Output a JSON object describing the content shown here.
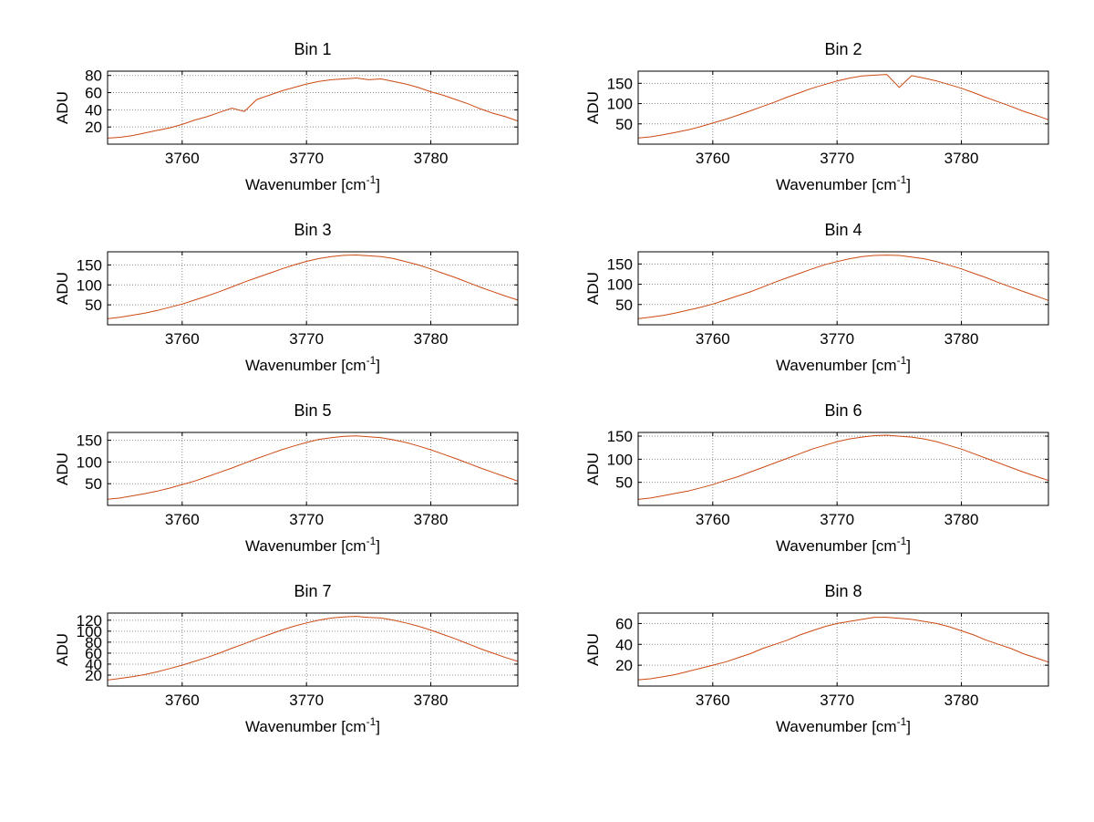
{
  "figure": {
    "background": "#ffffff",
    "rows": 4,
    "cols": 2
  },
  "colors": {
    "line": "#cc4a14",
    "grid": "#8c8c8c",
    "axis": "#000000",
    "text": "#000000"
  },
  "chart_data": [
    {
      "type": "line",
      "title": "Bin 1",
      "xlabel": "Wavenumber [cm^-1]",
      "xlabel_parts": [
        "Wavenumber [cm",
        "-1",
        "]"
      ],
      "ylabel": "ADU",
      "xlim": [
        3754,
        3787
      ],
      "ylim": [
        0,
        85
      ],
      "xticks": [
        3760,
        3770,
        3780
      ],
      "yticks": [
        20,
        40,
        60,
        80
      ],
      "grid": "dotted",
      "x": [
        3754,
        3755,
        3756,
        3757,
        3758,
        3759,
        3760,
        3761,
        3762,
        3763,
        3764,
        3765,
        3766,
        3767,
        3768,
        3769,
        3770,
        3771,
        3772,
        3773,
        3774,
        3775,
        3776,
        3777,
        3778,
        3779,
        3780,
        3781,
        3782,
        3783,
        3784,
        3785,
        3786,
        3787
      ],
      "y": [
        7,
        8,
        10,
        13,
        16,
        19,
        23,
        28,
        32,
        37,
        42,
        38,
        52,
        57,
        62,
        66,
        70,
        73,
        75,
        76,
        77,
        75,
        76,
        73,
        70,
        66,
        61,
        57,
        52,
        47,
        41,
        36,
        32,
        27
      ]
    },
    {
      "type": "line",
      "title": "Bin 2",
      "xlabel": "Wavenumber [cm^-1]",
      "xlabel_parts": [
        "Wavenumber [cm",
        "-1",
        "]"
      ],
      "ylabel": "ADU",
      "xlim": [
        3754,
        3787
      ],
      "ylim": [
        0,
        180
      ],
      "xticks": [
        3760,
        3770,
        3780
      ],
      "yticks": [
        50,
        100,
        150
      ],
      "grid": "dotted",
      "x": [
        3754,
        3755,
        3756,
        3757,
        3758,
        3759,
        3760,
        3761,
        3762,
        3763,
        3764,
        3765,
        3766,
        3767,
        3768,
        3769,
        3770,
        3771,
        3772,
        3773,
        3774,
        3775,
        3776,
        3777,
        3778,
        3779,
        3780,
        3781,
        3782,
        3783,
        3784,
        3785,
        3786,
        3787
      ],
      "y": [
        15,
        18,
        23,
        29,
        35,
        43,
        52,
        61,
        71,
        82,
        93,
        104,
        116,
        127,
        138,
        147,
        156,
        163,
        168,
        170,
        172,
        140,
        169,
        163,
        156,
        147,
        138,
        127,
        115,
        104,
        93,
        81,
        71,
        60
      ]
    },
    {
      "type": "line",
      "title": "Bin 3",
      "xlabel": "Wavenumber [cm^-1]",
      "xlabel_parts": [
        "Wavenumber [cm",
        "-1",
        "]"
      ],
      "ylabel": "ADU",
      "xlim": [
        3754,
        3787
      ],
      "ylim": [
        0,
        183
      ],
      "xticks": [
        3760,
        3770,
        3780
      ],
      "yticks": [
        50,
        100,
        150
      ],
      "grid": "dotted",
      "x": [
        3754,
        3755,
        3756,
        3757,
        3758,
        3759,
        3760,
        3761,
        3762,
        3763,
        3764,
        3765,
        3766,
        3767,
        3768,
        3769,
        3770,
        3771,
        3772,
        3773,
        3774,
        3775,
        3776,
        3777,
        3778,
        3779,
        3780,
        3781,
        3782,
        3783,
        3784,
        3785,
        3786,
        3787
      ],
      "y": [
        15,
        19,
        24,
        29,
        36,
        44,
        52,
        62,
        72,
        83,
        95,
        107,
        118,
        129,
        140,
        150,
        159,
        166,
        171,
        174,
        175,
        173,
        171,
        166,
        158,
        150,
        140,
        129,
        118,
        106,
        94,
        83,
        72,
        62
      ]
    },
    {
      "type": "line",
      "title": "Bin 4",
      "xlabel": "Wavenumber [cm^-1]",
      "xlabel_parts": [
        "Wavenumber [cm",
        "-1",
        "]"
      ],
      "ylabel": "ADU",
      "xlim": [
        3754,
        3787
      ],
      "ylim": [
        0,
        180
      ],
      "xticks": [
        3760,
        3770,
        3780
      ],
      "yticks": [
        50,
        100,
        150
      ],
      "grid": "dotted",
      "x": [
        3754,
        3755,
        3756,
        3757,
        3758,
        3759,
        3760,
        3761,
        3762,
        3763,
        3764,
        3765,
        3766,
        3767,
        3768,
        3769,
        3770,
        3771,
        3772,
        3773,
        3774,
        3775,
        3776,
        3777,
        3778,
        3779,
        3780,
        3781,
        3782,
        3783,
        3784,
        3785,
        3786,
        3787
      ],
      "y": [
        15,
        19,
        23,
        29,
        36,
        43,
        51,
        61,
        71,
        81,
        93,
        105,
        116,
        127,
        138,
        148,
        156,
        163,
        168,
        171,
        172,
        171,
        167,
        163,
        156,
        147,
        138,
        127,
        116,
        104,
        93,
        82,
        71,
        60
      ]
    },
    {
      "type": "line",
      "title": "Bin 5",
      "xlabel": "Wavenumber [cm^-1]",
      "xlabel_parts": [
        "Wavenumber [cm",
        "-1",
        "]"
      ],
      "ylabel": "ADU",
      "xlim": [
        3754,
        3787
      ],
      "ylim": [
        0,
        168
      ],
      "xticks": [
        3760,
        3770,
        3780
      ],
      "yticks": [
        50,
        100,
        150
      ],
      "grid": "dotted",
      "x": [
        3754,
        3755,
        3756,
        3757,
        3758,
        3759,
        3760,
        3761,
        3762,
        3763,
        3764,
        3765,
        3766,
        3767,
        3768,
        3769,
        3770,
        3771,
        3772,
        3773,
        3774,
        3775,
        3776,
        3777,
        3778,
        3779,
        3780,
        3781,
        3782,
        3783,
        3784,
        3785,
        3786,
        3787
      ],
      "y": [
        14,
        17,
        22,
        27,
        33,
        40,
        48,
        56,
        66,
        76,
        86,
        97,
        108,
        118,
        128,
        137,
        145,
        152,
        156,
        159,
        160,
        158,
        156,
        151,
        145,
        137,
        128,
        118,
        108,
        97,
        86,
        76,
        66,
        56
      ]
    },
    {
      "type": "line",
      "title": "Bin 6",
      "xlabel": "Wavenumber [cm^-1]",
      "xlabel_parts": [
        "Wavenumber [cm",
        "-1",
        "]"
      ],
      "ylabel": "ADU",
      "xlim": [
        3754,
        3787
      ],
      "ylim": [
        0,
        158
      ],
      "xticks": [
        3760,
        3770,
        3780
      ],
      "yticks": [
        50,
        100,
        150
      ],
      "grid": "dotted",
      "x": [
        3754,
        3755,
        3756,
        3757,
        3758,
        3759,
        3760,
        3761,
        3762,
        3763,
        3764,
        3765,
        3766,
        3767,
        3768,
        3769,
        3770,
        3771,
        3772,
        3773,
        3774,
        3775,
        3776,
        3777,
        3778,
        3779,
        3780,
        3781,
        3782,
        3783,
        3784,
        3785,
        3786,
        3787
      ],
      "y": [
        13,
        16,
        21,
        26,
        31,
        38,
        45,
        54,
        62,
        72,
        82,
        92,
        102,
        112,
        122,
        130,
        138,
        144,
        148,
        151,
        152,
        150,
        148,
        144,
        138,
        130,
        122,
        112,
        102,
        92,
        82,
        72,
        63,
        54
      ]
    },
    {
      "type": "line",
      "title": "Bin 7",
      "xlabel": "Wavenumber [cm^-1]",
      "xlabel_parts": [
        "Wavenumber [cm",
        "-1",
        "]"
      ],
      "ylabel": "ADU",
      "xlim": [
        3754,
        3787
      ],
      "ylim": [
        0,
        133
      ],
      "xticks": [
        3760,
        3770,
        3780
      ],
      "yticks": [
        20,
        40,
        60,
        80,
        100,
        120
      ],
      "grid": "dotted",
      "x": [
        3754,
        3755,
        3756,
        3757,
        3758,
        3759,
        3760,
        3761,
        3762,
        3763,
        3764,
        3765,
        3766,
        3767,
        3768,
        3769,
        3770,
        3771,
        3772,
        3773,
        3774,
        3775,
        3776,
        3777,
        3778,
        3779,
        3780,
        3781,
        3782,
        3783,
        3784,
        3785,
        3786,
        3787
      ],
      "y": [
        11,
        14,
        17,
        21,
        26,
        32,
        38,
        45,
        52,
        60,
        69,
        77,
        86,
        94,
        102,
        109,
        115,
        120,
        124,
        126,
        127,
        125,
        124,
        120,
        115,
        109,
        102,
        94,
        86,
        77,
        68,
        60,
        52,
        45
      ]
    },
    {
      "type": "line",
      "title": "Bin 8",
      "xlabel": "Wavenumber [cm^-1]",
      "xlabel_parts": [
        "Wavenumber [cm",
        "-1",
        "]"
      ],
      "ylabel": "ADU",
      "xlim": [
        3754,
        3787
      ],
      "ylim": [
        0,
        70
      ],
      "xticks": [
        3760,
        3770,
        3780
      ],
      "yticks": [
        20,
        40,
        60
      ],
      "grid": "dotted",
      "x": [
        3754,
        3755,
        3756,
        3757,
        3758,
        3759,
        3760,
        3761,
        3762,
        3763,
        3764,
        3765,
        3766,
        3767,
        3768,
        3769,
        3770,
        3771,
        3772,
        3773,
        3774,
        3775,
        3776,
        3777,
        3778,
        3779,
        3780,
        3781,
        3782,
        3783,
        3784,
        3785,
        3786,
        3787
      ],
      "y": [
        6,
        7,
        9,
        11,
        14,
        17,
        20,
        23,
        27,
        31,
        36,
        40,
        44,
        49,
        53,
        57,
        60,
        62,
        64,
        66,
        66,
        65,
        64,
        62,
        60,
        57,
        53,
        49,
        44,
        40,
        36,
        31,
        27,
        23
      ]
    }
  ]
}
